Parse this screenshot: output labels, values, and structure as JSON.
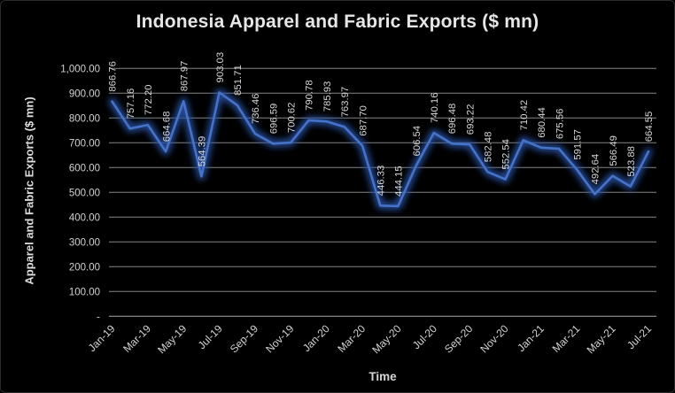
{
  "chart_data": {
    "type": "line",
    "title": "Indonesia Apparel and Fabric Exports ($ mn)",
    "xlabel": "Time",
    "ylabel": "Apparel and Fabric Exports ($ mn)",
    "ylim": [
      0,
      1000
    ],
    "ytick_step": 100,
    "ytick_labels": [
      "-",
      "100.00",
      "200.00",
      "300.00",
      "400.00",
      "500.00",
      "600.00",
      "700.00",
      "800.00",
      "900.00",
      "1,000.00"
    ],
    "x": [
      "Jan-19",
      "Feb-19",
      "Mar-19",
      "Apr-19",
      "May-19",
      "Jun-19",
      "Jul-19",
      "Aug-19",
      "Sep-19",
      "Oct-19",
      "Nov-19",
      "Dec-19",
      "Jan-20",
      "Feb-20",
      "Mar-20",
      "Apr-20",
      "May-20",
      "Jun-20",
      "Jul-20",
      "Aug-20",
      "Sep-20",
      "Oct-20",
      "Nov-20",
      "Dec-20",
      "Jan-21",
      "Feb-21",
      "Mar-21",
      "Apr-21",
      "May-21",
      "Jun-21",
      "Jul-21"
    ],
    "xticks_shown_every": 2,
    "xticks_shown": [
      "Jan-19",
      "Mar-19",
      "May-19",
      "Jul-19",
      "Sep-19",
      "Nov-19",
      "Jan-20",
      "Mar-20",
      "May-20",
      "Jul-20",
      "Sep-20",
      "Nov-20",
      "Jan-21",
      "Mar-21",
      "May-21",
      "Jul-21"
    ],
    "values": [
      866.76,
      757.16,
      772.2,
      664.68,
      867.97,
      564.39,
      903.03,
      851.71,
      736.46,
      696.59,
      700.62,
      790.78,
      785.93,
      763.97,
      687.7,
      446.33,
      444.15,
      606.54,
      740.16,
      696.48,
      693.22,
      582.48,
      552.54,
      710.42,
      680.44,
      675.56,
      591.57,
      492.64,
      566.49,
      523.88,
      664.55
    ],
    "data_labels": true,
    "data_label_rotation_deg": -90,
    "xtick_rotation_deg": -45,
    "grid": "horizontal",
    "legend": "none",
    "colors": {
      "background": "#000000",
      "line": "#4573c9",
      "glow": "#2c52a6",
      "gridline": "#9c9c9c",
      "axis_line": "#b3b3b3",
      "tick_text": "#d2d2d2",
      "data_label_text": "#d6d6d6",
      "title_text": "#e6e6e6"
    }
  }
}
